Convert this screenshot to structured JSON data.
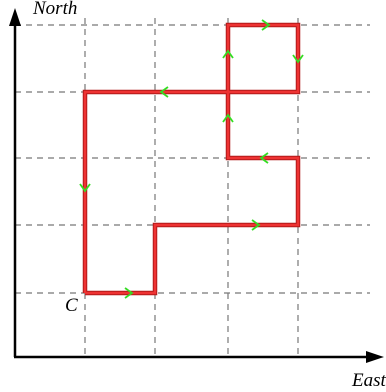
{
  "axes": {
    "y_label": "North",
    "x_label": "East"
  },
  "points": {
    "start_label": "C"
  }
}
